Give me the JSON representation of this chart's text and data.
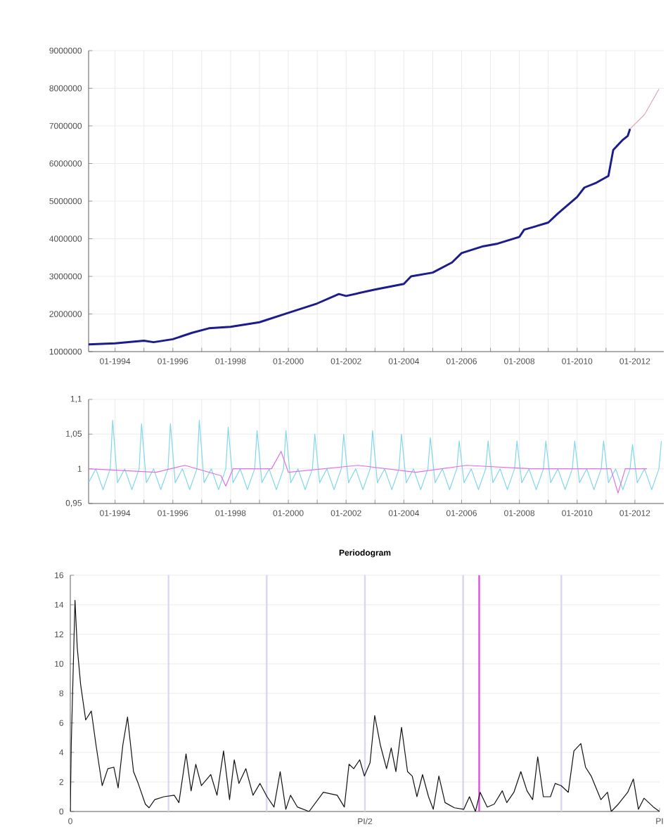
{
  "chart_data": [
    {
      "type": "line",
      "xlim": [
        "1993-02",
        "2013-01"
      ],
      "ylim": [
        1000000,
        9000000
      ],
      "grid": true,
      "xticks": [
        {
          "value": "1994-01",
          "label": "01-1994"
        },
        {
          "value": "1995-01",
          "label": null
        },
        {
          "value": "1996-01",
          "label": "01-1996"
        },
        {
          "value": "1997-01",
          "label": null
        },
        {
          "value": "1998-01",
          "label": "01-1998"
        },
        {
          "value": "1999-01",
          "label": null
        },
        {
          "value": "2000-01",
          "label": "01-2000"
        },
        {
          "value": "2001-01",
          "label": null
        },
        {
          "value": "2002-01",
          "label": "01-2002"
        },
        {
          "value": "2003-01",
          "label": null
        },
        {
          "value": "2004-01",
          "label": "01-2004"
        },
        {
          "value": "2005-01",
          "label": null
        },
        {
          "value": "2006-01",
          "label": "01-2006"
        },
        {
          "value": "2007-01",
          "label": null
        },
        {
          "value": "2008-01",
          "label": "01-2008"
        },
        {
          "value": "2009-01",
          "label": null
        },
        {
          "value": "2010-01",
          "label": "01-2010"
        },
        {
          "value": "2011-01",
          "label": null
        },
        {
          "value": "2012-01",
          "label": "01-2012"
        }
      ],
      "yticks": [
        1000000,
        2000000,
        3000000,
        4000000,
        5000000,
        6000000,
        7000000,
        8000000,
        9000000
      ],
      "series": [
        {
          "color": "#1c1c8c",
          "x": [
            "1993-02",
            "1994-01",
            "1995-01",
            "1995-05",
            "1996-01",
            "1996-09",
            "1997-04",
            "1998-01",
            "1999-01",
            "2000-01",
            "2001-01",
            "2001-10",
            "2002-01",
            "2003-01",
            "2004-01",
            "2004-04",
            "2005-01",
            "2005-09",
            "2006-01",
            "2006-10",
            "2007-04",
            "2008-01",
            "2008-03",
            "2009-01",
            "2009-05",
            "2010-01",
            "2010-04",
            "2010-09",
            "2011-02",
            "2011-04",
            "2011-08",
            "2011-10",
            "2011-11"
          ],
          "values": [
            1190000,
            1220000,
            1290000,
            1250000,
            1330000,
            1500000,
            1620000,
            1660000,
            1780000,
            2030000,
            2280000,
            2530000,
            2480000,
            2650000,
            2800000,
            3000000,
            3100000,
            3370000,
            3620000,
            3800000,
            3870000,
            4050000,
            4240000,
            4430000,
            4670000,
            5110000,
            5360000,
            5490000,
            5670000,
            6360000,
            6630000,
            6730000,
            6920000
          ]
        },
        {
          "color": "#e6a8b8",
          "x": [
            "2011-11",
            "2012-05",
            "2012-11"
          ],
          "values": [
            6920000,
            7300000,
            7980000
          ]
        }
      ]
    },
    {
      "type": "line",
      "xlim": [
        "1993-02",
        "2013-01"
      ],
      "ylim": [
        0.95,
        1.1
      ],
      "grid": true,
      "xticks": [
        {
          "value": "1994-01",
          "label": "01-1994"
        },
        {
          "value": "1995-01",
          "label": null
        },
        {
          "value": "1996-01",
          "label": "01-1996"
        },
        {
          "value": "1997-01",
          "label": null
        },
        {
          "value": "1998-01",
          "label": "01-1998"
        },
        {
          "value": "1999-01",
          "label": null
        },
        {
          "value": "2000-01",
          "label": "01-2000"
        },
        {
          "value": "2001-01",
          "label": null
        },
        {
          "value": "2002-01",
          "label": "01-2002"
        },
        {
          "value": "2003-01",
          "label": null
        },
        {
          "value": "2004-01",
          "label": "01-2004"
        },
        {
          "value": "2005-01",
          "label": null
        },
        {
          "value": "2006-01",
          "label": "01-2006"
        },
        {
          "value": "2007-01",
          "label": null
        },
        {
          "value": "2008-01",
          "label": "01-2008"
        },
        {
          "value": "2009-01",
          "label": null
        },
        {
          "value": "2010-01",
          "label": "01-2010"
        },
        {
          "value": "2011-01",
          "label": null
        },
        {
          "value": "2012-01",
          "label": "01-2012"
        }
      ],
      "yticks": [
        {
          "value": 0.95,
          "label": "0,95"
        },
        1,
        {
          "value": 1.05,
          "label": "1,05"
        },
        {
          "value": 1.1,
          "label": "1,1"
        }
      ],
      "series": [
        {
          "color": "#80d8ea",
          "x": [
            "1993-02",
            "1993-05",
            "1993-08",
            "1993-11",
            "1993-12",
            "1994-02",
            "1994-05",
            "1994-08",
            "1994-11",
            "1994-12",
            "1995-02",
            "1995-05",
            "1995-08",
            "1995-11",
            "1995-12",
            "1996-02",
            "1996-05",
            "1996-08",
            "1996-11",
            "1996-12",
            "1997-02",
            "1997-05",
            "1997-08",
            "1997-11",
            "1997-12",
            "1998-02",
            "1998-05",
            "1998-08",
            "1998-11",
            "1998-12",
            "1999-02",
            "1999-05",
            "1999-08",
            "1999-11",
            "1999-12",
            "2000-02",
            "2000-05",
            "2000-08",
            "2000-11",
            "2000-12",
            "2001-02",
            "2001-05",
            "2001-08",
            "2001-11",
            "2001-12",
            "2002-02",
            "2002-05",
            "2002-08",
            "2002-11",
            "2002-12",
            "2003-02",
            "2003-05",
            "2003-08",
            "2003-11",
            "2003-12",
            "2004-02",
            "2004-05",
            "2004-08",
            "2004-11",
            "2004-12",
            "2005-02",
            "2005-05",
            "2005-08",
            "2005-11",
            "2005-12",
            "2006-02",
            "2006-05",
            "2006-08",
            "2006-11",
            "2006-12",
            "2007-02",
            "2007-05",
            "2007-08",
            "2007-11",
            "2007-12",
            "2008-02",
            "2008-05",
            "2008-08",
            "2008-11",
            "2008-12",
            "2009-02",
            "2009-05",
            "2009-08",
            "2009-11",
            "2009-12",
            "2010-02",
            "2010-05",
            "2010-08",
            "2010-11",
            "2010-12",
            "2011-02",
            "2011-05",
            "2011-08",
            "2011-11",
            "2011-12",
            "2012-02",
            "2012-05",
            "2012-08",
            "2012-11",
            "2012-12"
          ],
          "values": [
            0.98,
            1.0,
            0.97,
            1.0,
            1.07,
            0.98,
            1.0,
            0.97,
            1.0,
            1.065,
            0.98,
            1.0,
            0.97,
            1.0,
            1.065,
            0.98,
            1.0,
            0.97,
            1.0,
            1.07,
            0.98,
            1.0,
            0.97,
            1.0,
            1.06,
            0.98,
            1.0,
            0.97,
            1.0,
            1.055,
            0.98,
            1.0,
            0.97,
            1.0,
            1.055,
            0.98,
            1.0,
            0.97,
            1.0,
            1.05,
            0.98,
            1.0,
            0.97,
            1.0,
            1.05,
            0.98,
            1.0,
            0.97,
            1.0,
            1.055,
            0.98,
            1.0,
            0.97,
            1.0,
            1.05,
            0.98,
            1.0,
            0.97,
            1.0,
            1.045,
            0.98,
            1.0,
            0.97,
            1.0,
            1.04,
            0.98,
            1.0,
            0.97,
            1.0,
            1.04,
            0.98,
            1.0,
            0.97,
            1.0,
            1.04,
            0.98,
            1.0,
            0.97,
            1.0,
            1.04,
            0.98,
            1.0,
            0.97,
            1.0,
            1.04,
            0.98,
            1.0,
            0.97,
            1.0,
            1.04,
            0.98,
            1.0,
            0.97,
            1.0,
            1.035,
            0.98,
            1.0,
            0.97,
            1.0,
            1.04
          ]
        },
        {
          "color": "#e070e0",
          "x": [
            "1993-02",
            "1995-06",
            "1996-06",
            "1997-09",
            "1997-11",
            "1998-02",
            "1999-06",
            "1999-10",
            "2000-01",
            "2002-06",
            "2004-06",
            "2006-03",
            "2008-06",
            "2010-06",
            "2011-03",
            "2011-06",
            "2011-09",
            "2012-06"
          ],
          "values": [
            1.0,
            0.995,
            1.005,
            0.99,
            0.975,
            1.0,
            1.0,
            1.025,
            0.995,
            1.005,
            0.995,
            1.005,
            1.0,
            1.0,
            1.0,
            0.965,
            1.0,
            1.0
          ]
        }
      ]
    },
    {
      "type": "line",
      "title": "Periodogram",
      "xlim": [
        0,
        3.1416
      ],
      "ylim": [
        0,
        16
      ],
      "grid": "y",
      "color": "#111111",
      "xticks": [
        0,
        {
          "value": 1.5708,
          "label": "PI/2"
        },
        {
          "value": 3.1416,
          "label": "PI"
        }
      ],
      "yticks": [
        0,
        2,
        4,
        6,
        8,
        10,
        12,
        14,
        16
      ],
      "ref_lines": [
        {
          "axis": "x",
          "value": 0.5236,
          "color": "#dcd4f2"
        },
        {
          "axis": "x",
          "value": 1.0472,
          "color": "#dcd4f2"
        },
        {
          "axis": "x",
          "value": 1.5708,
          "color": "#dcd4f2"
        },
        {
          "axis": "x",
          "value": 2.0944,
          "color": "#dcd4f2"
        },
        {
          "axis": "x",
          "value": 2.618,
          "color": "#dcd4f2"
        },
        {
          "axis": "x",
          "value": 2.18,
          "color": "#e050e0"
        }
      ],
      "x": [
        0,
        0.005,
        0.025,
        0.037,
        0.055,
        0.082,
        0.112,
        0.137,
        0.17,
        0.2,
        0.232,
        0.255,
        0.28,
        0.305,
        0.337,
        0.362,
        0.4,
        0.42,
        0.45,
        0.499,
        0.554,
        0.579,
        0.617,
        0.644,
        0.669,
        0.699,
        0.749,
        0.782,
        0.817,
        0.849,
        0.874,
        0.899,
        0.936,
        0.974,
        1.011,
        1.049,
        1.086,
        1.119,
        1.149,
        1.174,
        1.211,
        1.273,
        1.349,
        1.423,
        1.461,
        1.486,
        1.511,
        1.543,
        1.568,
        1.598,
        1.623,
        1.653,
        1.686,
        1.711,
        1.736,
        1.766,
        1.798,
        1.823,
        1.848,
        1.878,
        1.91,
        1.935,
        1.965,
        1.998,
        2.048,
        2.098,
        2.128,
        2.16,
        2.185,
        2.223,
        2.26,
        2.303,
        2.327,
        2.365,
        2.402,
        2.435,
        2.465,
        2.492,
        2.522,
        2.56,
        2.585,
        2.617,
        2.655,
        2.685,
        2.722,
        2.747,
        2.777,
        2.829,
        2.864,
        2.884,
        2.922,
        2.972,
        3.002,
        3.029,
        3.059,
        3.109,
        3.1416
      ],
      "values": [
        0,
        4.5,
        14.3,
        11.1,
        8.6,
        6.2,
        6.8,
        4.5,
        1.75,
        2.9,
        3.0,
        1.6,
        4.5,
        6.4,
        2.7,
        1.9,
        0.5,
        0.25,
        0.8,
        1.0,
        1.1,
        0.6,
        3.9,
        1.4,
        3.2,
        1.75,
        2.5,
        1.1,
        4.1,
        0.8,
        3.5,
        1.9,
        2.9,
        1.1,
        1.9,
        1.0,
        0.3,
        2.7,
        0.15,
        1.1,
        0.3,
        0,
        1.3,
        1.1,
        0.3,
        3.2,
        2.9,
        3.5,
        2.4,
        3.3,
        6.5,
        4.5,
        2.9,
        4.3,
        2.7,
        5.7,
        2.7,
        2.4,
        1.0,
        2.5,
        1.0,
        0.15,
        2.4,
        0.6,
        0.25,
        0.15,
        1.0,
        0,
        1.3,
        0.3,
        0.5,
        1.4,
        0.6,
        1.3,
        2.7,
        1.4,
        0.8,
        3.7,
        1.0,
        1.0,
        1.9,
        1.75,
        1.3,
        4.1,
        4.6,
        3.0,
        2.4,
        0.8,
        1.3,
        0,
        0.5,
        1.3,
        2.2,
        0.15,
        0.9,
        0.3,
        0
      ]
    }
  ]
}
